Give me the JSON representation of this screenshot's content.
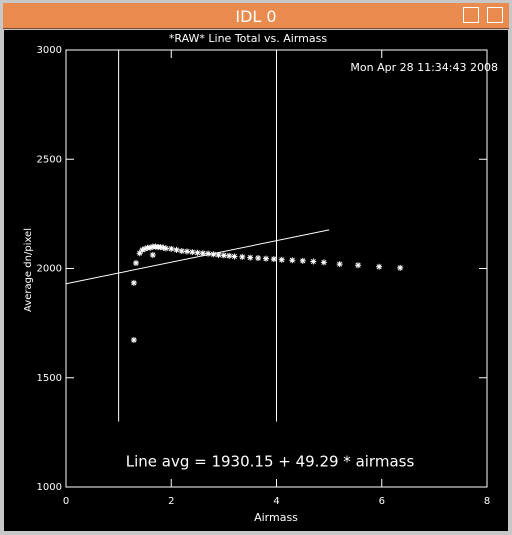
{
  "window_title": "IDL 0",
  "chart_data": {
    "type": "scatter",
    "title": "*RAW* Line Total vs. Airmass",
    "subtitle": "Mon Apr 28 11:34:43 2008",
    "x_label": "Airmass",
    "y_label": "Average dn/pixel",
    "annotation": "Line avg = 1930.15 + 49.29 * airmass",
    "xlim": [
      0,
      8
    ],
    "ylim": [
      1000,
      3000
    ],
    "xticks": [
      0,
      2,
      4,
      6,
      8
    ],
    "yticks": [
      1000,
      1500,
      2000,
      2500,
      3000
    ],
    "color": "#ffffff",
    "x": [
      1.29,
      1.29,
      1.33,
      1.4,
      1.45,
      1.5,
      1.55,
      1.6,
      1.65,
      1.65,
      1.7,
      1.75,
      1.8,
      1.85,
      1.9,
      2.0,
      2.1,
      2.2,
      2.3,
      2.4,
      2.5,
      2.6,
      2.7,
      2.8,
      2.9,
      3.0,
      3.1,
      3.2,
      3.35,
      3.5,
      3.65,
      3.8,
      3.95,
      4.1,
      4.3,
      4.5,
      4.7,
      4.9,
      5.2,
      5.55,
      5.95,
      6.35
    ],
    "values": [
      1673,
      1934,
      2025,
      2070,
      2085,
      2090,
      2095,
      2095,
      2100,
      2062,
      2100,
      2098,
      2098,
      2095,
      2092,
      2090,
      2085,
      2080,
      2078,
      2075,
      2072,
      2070,
      2068,
      2065,
      2062,
      2060,
      2058,
      2055,
      2053,
      2050,
      2048,
      2045,
      2043,
      2040,
      2038,
      2035,
      2032,
      2028,
      2020,
      2015,
      2008,
      2003
    ],
    "fit": {
      "x": [
        0,
        5
      ],
      "values": [
        1930.15,
        2176.6
      ]
    },
    "vlines": {
      "x": [
        1,
        4
      ],
      "y": [
        1300,
        3000
      ]
    }
  }
}
